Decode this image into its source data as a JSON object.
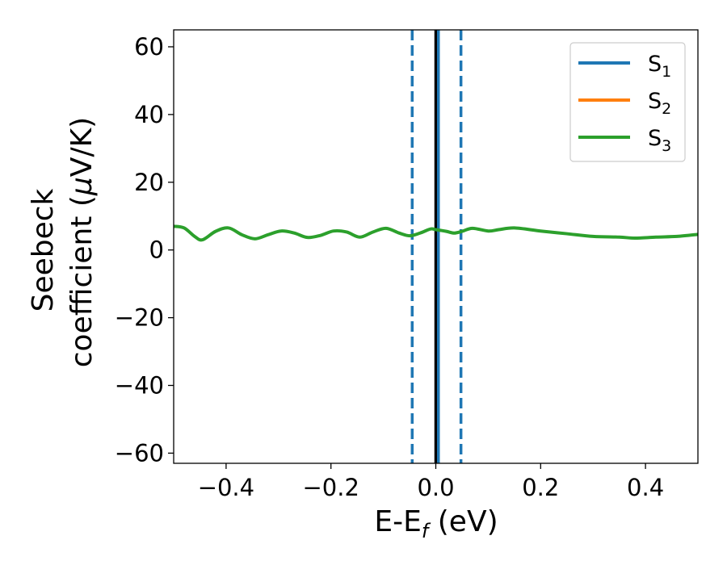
{
  "chart_data": {
    "type": "line",
    "xlabel": {
      "main": "E-E",
      "sub": "f",
      "tail": " (eV)"
    },
    "ylabel": {
      "line1": "Seebeck",
      "line2_main": "coefficient  (",
      "mu": "μ",
      "line2_tail": "V/K)"
    },
    "xlim": [
      -0.5,
      0.5
    ],
    "ylim": [
      -63,
      65
    ],
    "xticks": [
      -0.4,
      -0.2,
      0.0,
      0.2,
      0.4
    ],
    "xtick_labels": [
      "−0.4",
      "−0.2",
      "0.0",
      "0.2",
      "0.4"
    ],
    "yticks": [
      -60,
      -40,
      -20,
      0,
      20,
      40,
      60
    ],
    "ytick_labels": [
      "−60",
      "−40",
      "−20",
      "0",
      "20",
      "40",
      "60"
    ],
    "grid": false,
    "legend_position": "top-right",
    "series": [
      {
        "name": "S",
        "sub": "1",
        "color": "#1f77b4",
        "x": [],
        "y": []
      },
      {
        "name": "S",
        "sub": "2",
        "color": "#ff7f0e",
        "x": [],
        "y": []
      },
      {
        "name": "S",
        "sub": "3",
        "color": "#2ca02c",
        "x": [
          -0.5,
          -0.48,
          -0.46,
          -0.445,
          -0.42,
          -0.395,
          -0.37,
          -0.345,
          -0.32,
          -0.295,
          -0.27,
          -0.245,
          -0.22,
          -0.195,
          -0.17,
          -0.145,
          -0.12,
          -0.095,
          -0.07,
          -0.05,
          -0.03,
          -0.01,
          0.0,
          0.02,
          0.035,
          0.05,
          0.07,
          0.1,
          0.12,
          0.15,
          0.2,
          0.25,
          0.3,
          0.35,
          0.38,
          0.42,
          0.46,
          0.5
        ],
        "y": [
          7,
          6.5,
          4,
          3,
          5.5,
          6.5,
          4.5,
          3.3,
          4.5,
          5.6,
          5,
          3.7,
          4.3,
          5.6,
          5.3,
          3.8,
          5.3,
          6.4,
          5,
          4.2,
          5,
          6.2,
          6,
          5.5,
          5,
          5.5,
          6.4,
          5.6,
          6,
          6.5,
          5.6,
          4.8,
          4,
          3.8,
          3.5,
          3.8,
          4,
          4.6
        ]
      }
    ],
    "vlines": [
      {
        "x": -0.045,
        "style": "dashed",
        "color": "#1f77b4"
      },
      {
        "x": 0.0,
        "style": "solid",
        "color": "#000000"
      },
      {
        "x": 0.005,
        "style": "solid",
        "color": "#1f77b4"
      },
      {
        "x": 0.048,
        "style": "dashed",
        "color": "#1f77b4"
      }
    ]
  }
}
